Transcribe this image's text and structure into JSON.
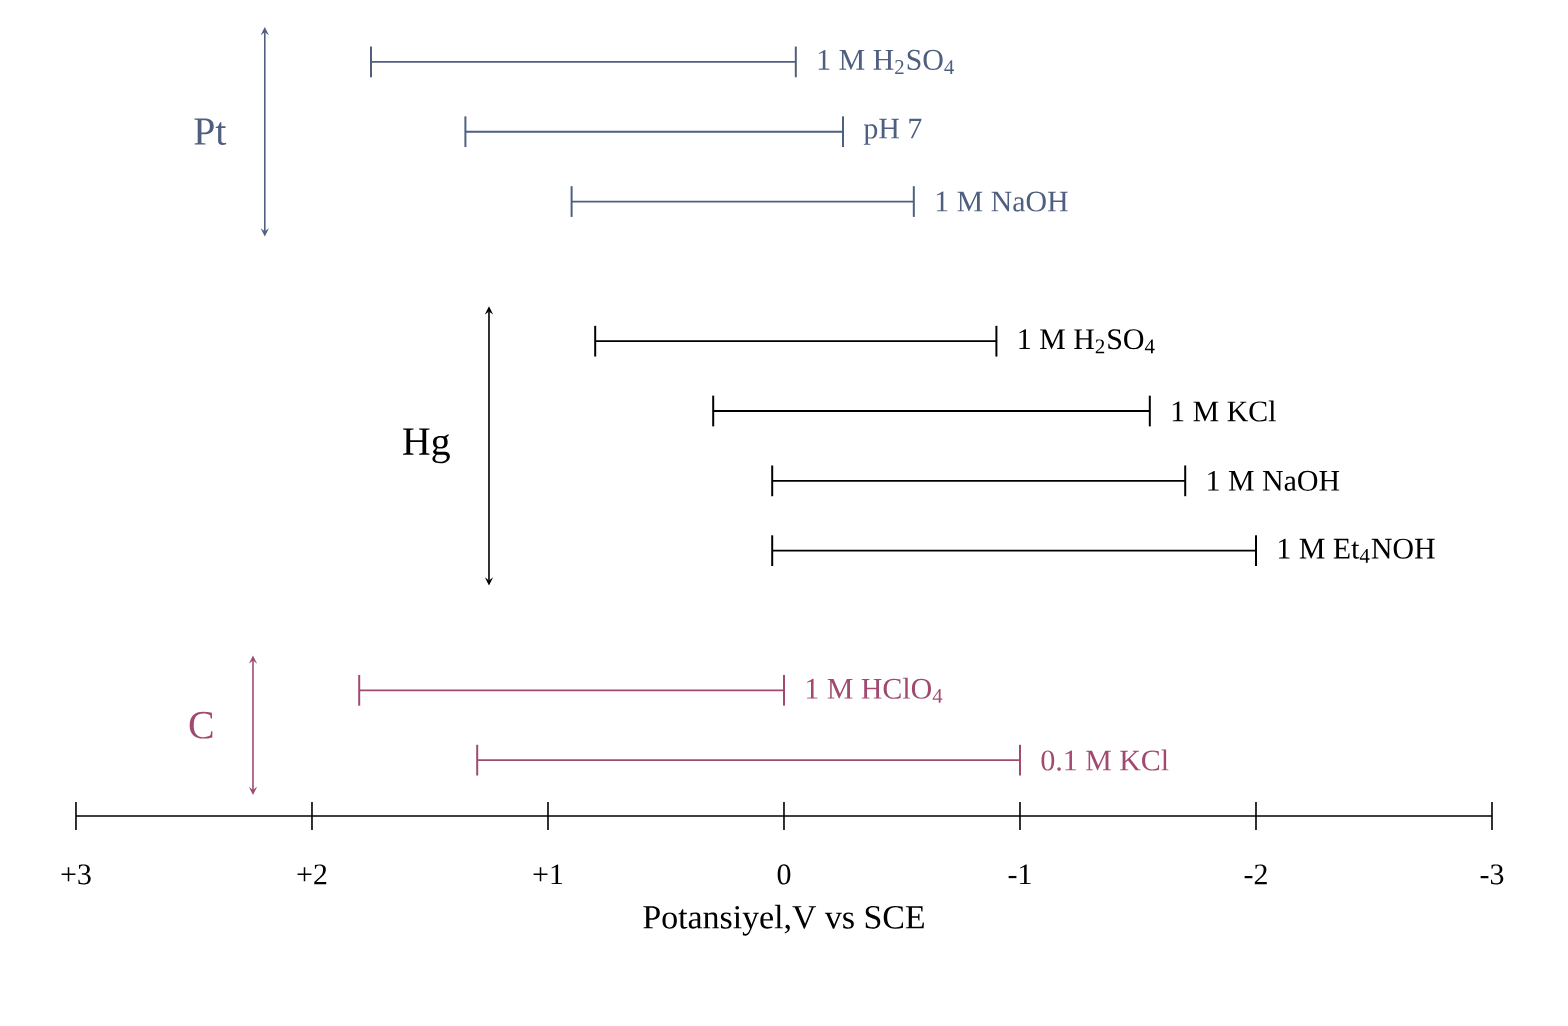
{
  "chart_data": {
    "type": "bar",
    "orientation": "horizontal",
    "xlabel": "Potansiyel,V vs SCE",
    "categories": [
      "1 M H$_{2}$SO$_{4}$",
      "pH 7",
      "1 M NaOH",
      null,
      "1 M H$_{2}$SO$_{4}$",
      "1 M KCl",
      "1 M NaOH",
      "1 M Et$_{4}$NOH",
      null,
      "1 M HClO$_{4}$",
      "0.1 M KCl"
    ],
    "series": [
      {
        "name": "Pt",
        "color": "#4f5f80",
        "base": [
          1.75,
          1.35,
          0.9,
          null,
          null,
          null,
          null,
          null,
          null,
          null,
          null
        ],
        "values": [
          -1.8,
          -1.6,
          -1.45,
          null,
          null,
          null,
          null,
          null,
          null,
          null,
          null
        ]
      },
      {
        "name": "Hg",
        "color": "#000000",
        "base": [
          null,
          null,
          null,
          null,
          0.8,
          0.3,
          0.05,
          0.05,
          null,
          null,
          null
        ],
        "values": [
          null,
          null,
          null,
          null,
          -1.7,
          -1.85,
          -1.75,
          -2.05,
          null,
          null,
          null
        ]
      },
      {
        "name": "C",
        "color": "#a04a70",
        "base": [
          null,
          null,
          null,
          null,
          null,
          null,
          null,
          null,
          null,
          1.8,
          1.3
        ],
        "values": [
          null,
          null,
          null,
          null,
          null,
          null,
          null,
          null,
          null,
          -1.8,
          -2.3
        ]
      }
    ],
    "xlim": [
      3,
      -3
    ],
    "xticks": [
      {
        "value": 3,
        "label": "+3"
      },
      {
        "value": 2,
        "label": "+2"
      },
      {
        "value": 1,
        "label": "+1"
      },
      0,
      -1,
      -2,
      -3
    ]
  }
}
